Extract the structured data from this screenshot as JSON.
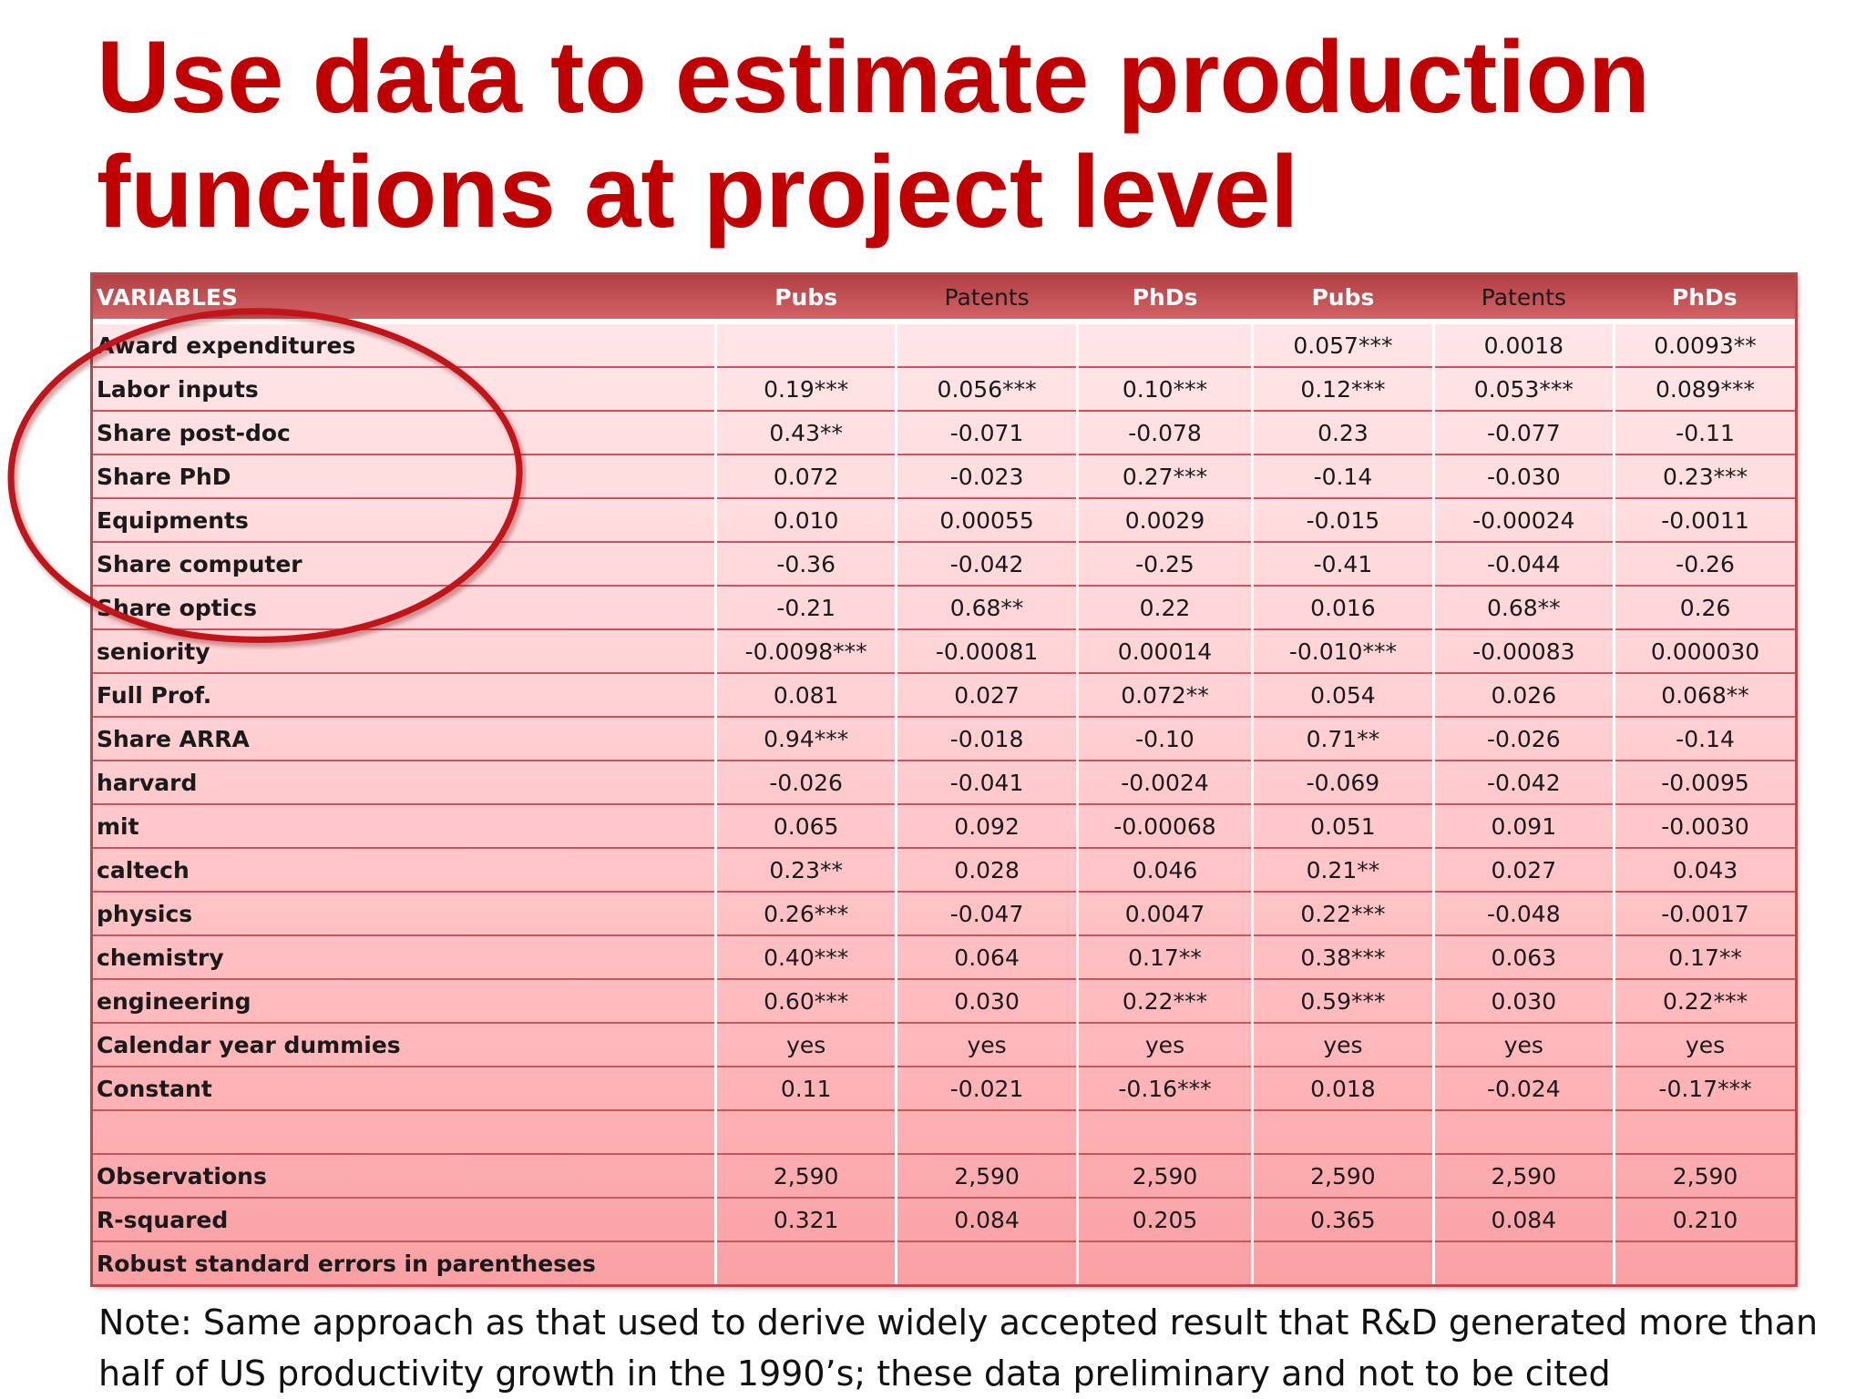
{
  "slide": {
    "title_lines": [
      "Use data to estimate production",
      "functions at project level"
    ],
    "note_lines": [
      "Note: Same approach as that used to derive widely accepted result that R&D generated more than",
      "half of US productivity growth in the 1990’s; these data preliminary and not to be cited"
    ],
    "accent_color": "#c00000",
    "highlight": {
      "shape": "ellipse",
      "color": "#c0151b",
      "encircles": "input variable labels"
    }
  },
  "table": {
    "headers": [
      "VARIABLES",
      "Pubs",
      "Patents",
      "PhDs",
      "Pubs",
      "Patents",
      "PhDs"
    ],
    "rows": [
      {
        "label": "Award expenditures",
        "cells": [
          "",
          "",
          "",
          "0.057***",
          "0.0018",
          "0.0093**"
        ]
      },
      {
        "label": "Labor inputs",
        "cells": [
          "0.19***",
          "0.056***",
          "0.10***",
          "0.12***",
          "0.053***",
          "0.089***"
        ]
      },
      {
        "label": "Share post-doc",
        "cells": [
          "0.43**",
          "-0.071",
          "-0.078",
          "0.23",
          "-0.077",
          "-0.11"
        ]
      },
      {
        "label": "Share PhD",
        "cells": [
          "0.072",
          "-0.023",
          "0.27***",
          "-0.14",
          "-0.030",
          "0.23***"
        ]
      },
      {
        "label": "Equipments",
        "cells": [
          "0.010",
          "0.00055",
          "0.0029",
          "-0.015",
          "-0.00024",
          "-0.0011"
        ]
      },
      {
        "label": "Share computer",
        "cells": [
          "-0.36",
          "-0.042",
          "-0.25",
          "-0.41",
          "-0.044",
          "-0.26"
        ]
      },
      {
        "label": "Share optics",
        "cells": [
          "-0.21",
          "0.68**",
          "0.22",
          "0.016",
          "0.68**",
          "0.26"
        ]
      },
      {
        "label": "seniority",
        "cells": [
          "-0.0098***",
          "-0.00081",
          "0.00014",
          "-0.010***",
          "-0.00083",
          "0.000030"
        ]
      },
      {
        "label": "Full Prof.",
        "cells": [
          "0.081",
          "0.027",
          "0.072**",
          "0.054",
          "0.026",
          "0.068**"
        ]
      },
      {
        "label": "Share ARRA",
        "cells": [
          "0.94***",
          "-0.018",
          "-0.10",
          "0.71**",
          "-0.026",
          "-0.14"
        ]
      },
      {
        "label": "harvard",
        "cells": [
          "-0.026",
          "-0.041",
          "-0.0024",
          "-0.069",
          "-0.042",
          "-0.0095"
        ]
      },
      {
        "label": "mit",
        "cells": [
          "0.065",
          "0.092",
          "-0.00068",
          "0.051",
          "0.091",
          "-0.0030"
        ]
      },
      {
        "label": "caltech",
        "cells": [
          "0.23**",
          "0.028",
          "0.046",
          "0.21**",
          "0.027",
          "0.043"
        ]
      },
      {
        "label": "physics",
        "cells": [
          "0.26***",
          "-0.047",
          "0.0047",
          "0.22***",
          "-0.048",
          "-0.0017"
        ]
      },
      {
        "label": "chemistry",
        "cells": [
          "0.40***",
          "0.064",
          "0.17**",
          "0.38***",
          "0.063",
          "0.17**"
        ]
      },
      {
        "label": "engineering",
        "cells": [
          "0.60***",
          "0.030",
          "0.22***",
          "0.59***",
          "0.030",
          "0.22***"
        ]
      },
      {
        "label": "Calendar year dummies",
        "cells": [
          "yes",
          "yes",
          "yes",
          "yes",
          "yes",
          "yes"
        ]
      },
      {
        "label": "Constant",
        "cells": [
          "0.11",
          "-0.021",
          "-0.16***",
          "0.018",
          "-0.024",
          "-0.17***"
        ]
      },
      {
        "label": "",
        "cells": [
          "",
          "",
          "",
          "",
          "",
          ""
        ]
      },
      {
        "label": "Observations",
        "cells": [
          "2,590",
          "2,590",
          "2,590",
          "2,590",
          "2,590",
          "2,590"
        ]
      },
      {
        "label": "R-squared",
        "cells": [
          "0.321",
          "0.084",
          "0.205",
          "0.365",
          "0.084",
          "0.210"
        ]
      },
      {
        "label": "Robust standard errors in parentheses",
        "cells": [
          "",
          "",
          "",
          "",
          "",
          ""
        ]
      }
    ]
  }
}
